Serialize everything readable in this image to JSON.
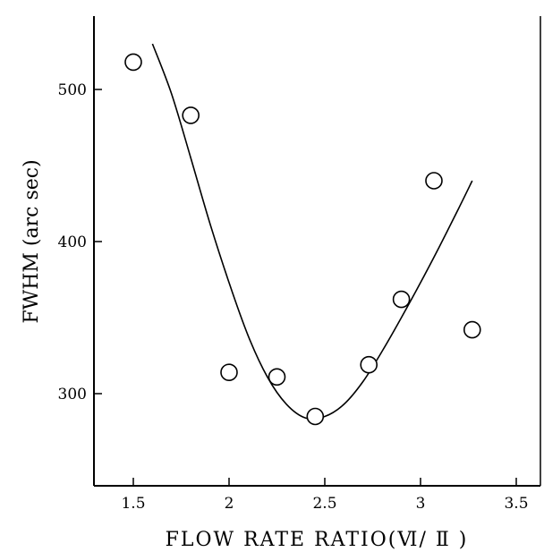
{
  "chart_data": {
    "type": "scatter",
    "xlabel": "FLOW RATE RATIO(Ⅵ/ Ⅱ )",
    "ylabel": "FWHM (arc sec)",
    "xlim": [
      1.3,
      3.6
    ],
    "ylim": [
      240,
      545
    ],
    "x_ticks": [
      1.5,
      2,
      2.5,
      3,
      3.5
    ],
    "x_tick_labels": [
      "1.5",
      "2",
      "2.5",
      "3",
      "3.5"
    ],
    "y_ticks": [
      300,
      400,
      500
    ],
    "y_tick_labels": [
      "300",
      "400",
      "500"
    ],
    "grid": false,
    "series": [
      {
        "kind": "points",
        "x": [
          1.5,
          1.8,
          2.0,
          2.25,
          2.45,
          2.73,
          2.9,
          3.07,
          3.27
        ],
        "y": [
          518,
          483,
          314,
          311,
          285,
          319,
          362,
          440,
          342
        ]
      },
      {
        "kind": "fit-curve",
        "x": [
          1.6,
          1.7,
          1.8,
          1.9,
          2.0,
          2.1,
          2.2,
          2.3,
          2.4,
          2.5,
          2.6,
          2.7,
          2.8,
          2.9,
          3.0,
          3.1,
          3.2,
          3.27
        ],
        "y": [
          530,
          497,
          455,
          412,
          373,
          338,
          311,
          293,
          284,
          285,
          293,
          308,
          328,
          350,
          373,
          397,
          422,
          440
        ]
      }
    ]
  }
}
